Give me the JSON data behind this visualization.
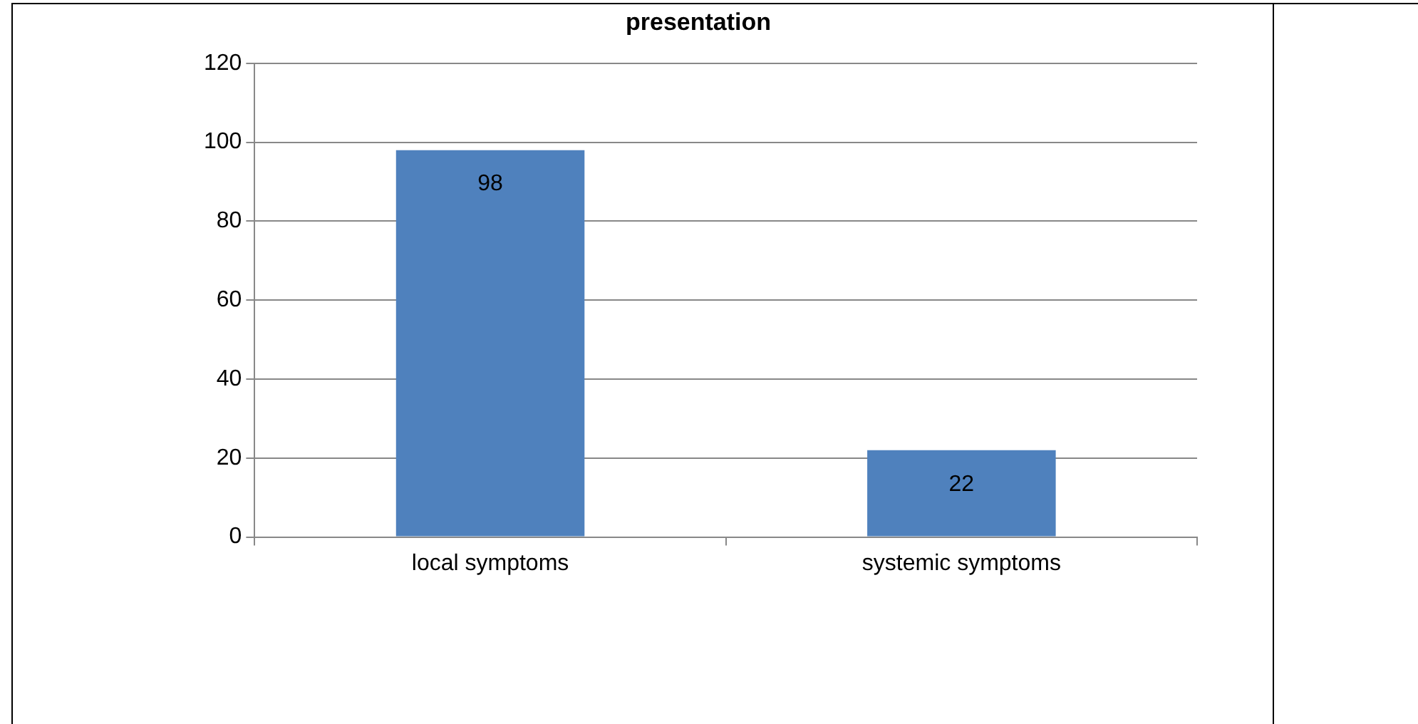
{
  "chart_data": {
    "type": "bar",
    "title": "presentation",
    "categories": [
      "local symptoms",
      "systemic symptoms"
    ],
    "values": [
      98,
      22
    ],
    "color": "#4f81bd",
    "ylim": [
      0,
      120
    ],
    "yticks": [
      0,
      20,
      40,
      60,
      80,
      100,
      120
    ],
    "grid": "y",
    "data_labels": true
  }
}
